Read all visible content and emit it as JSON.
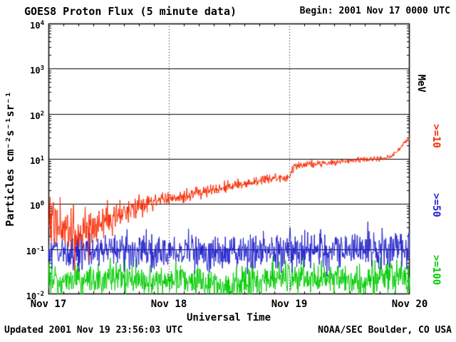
{
  "header": {
    "title": "GOES8 Proton Flux (5 minute data)",
    "begin_label": "Begin: 2001 Nov 17 0000 UTC"
  },
  "footer": {
    "updated": "Updated 2001 Nov 19 23:56:03 UTC",
    "credit": "NOAA/SEC Boulder, CO USA"
  },
  "axes": {
    "ylabel": "Particles cm⁻²s⁻¹sr⁻¹",
    "xlabel": "Universal Time",
    "right_unit": "MeV",
    "y_tick_exponents": [
      4,
      3,
      2,
      1,
      0,
      -1,
      -2
    ],
    "x_tick_labels": [
      "Nov 17",
      "Nov 18",
      "Nov 19",
      "Nov 20"
    ]
  },
  "colors": {
    "red_series": "#fa2800",
    "blue_series": "#2020cc",
    "green_series": "#00cc00",
    "axis": "#000000",
    "background": "#ffffff"
  },
  "chart_data": {
    "type": "line",
    "title": "GOES8 Proton Flux (5 minute data)",
    "xlabel": "Universal Time",
    "ylabel": "Particles cm^-2 s^-1 sr^-1",
    "x_unit": "hours since 2001 Nov 17 0000 UTC",
    "x_range_hours": [
      0,
      72
    ],
    "x_tick_hours": [
      0,
      24,
      48,
      72
    ],
    "x_gridlines_hours": [
      24,
      48
    ],
    "y_scale": "log10",
    "ylim": [
      0.01,
      10000
    ],
    "grid": "horizontal solid per decade, vertical dotted per day",
    "legend_position": "right edge, rotated",
    "sample_minutes": 5,
    "noise_seed": 20011117,
    "series": [
      {
        "name": ">=10",
        "unit": "MeV",
        "color": "#fa2800",
        "anchors_hours": [
          0,
          1,
          2,
          3,
          4,
          5,
          6,
          7,
          8,
          9,
          10,
          11,
          12,
          14,
          16,
          18,
          20,
          22,
          24,
          27,
          30,
          33,
          36,
          39,
          42,
          45,
          46,
          47,
          48,
          48.5,
          49,
          50,
          52,
          54,
          56,
          58,
          60,
          62,
          64,
          66,
          67,
          68,
          69,
          70,
          71,
          72
        ],
        "anchors_flux": [
          0.55,
          0.4,
          0.35,
          0.3,
          0.3,
          0.25,
          0.25,
          0.2,
          0.2,
          0.3,
          0.35,
          0.45,
          0.5,
          0.55,
          0.7,
          0.85,
          1.0,
          1.15,
          1.3,
          1.5,
          1.8,
          2.1,
          2.4,
          2.8,
          3.2,
          3.6,
          3.9,
          3.6,
          4.2,
          5.5,
          6.8,
          7.2,
          7.6,
          8.0,
          8.3,
          8.6,
          9.0,
          9.5,
          9.8,
          10.2,
          10.0,
          11,
          13,
          17,
          23,
          30
        ],
        "noise_anchors_hours": [
          0,
          6,
          10,
          14,
          20,
          24,
          36,
          48,
          60,
          72
        ],
        "noise_log10": [
          0.26,
          0.3,
          0.24,
          0.15,
          0.1,
          0.07,
          0.06,
          0.05,
          0.035,
          0.02
        ]
      },
      {
        "name": ">=50",
        "unit": "MeV",
        "color": "#2020cc",
        "anchors_hours": [
          0,
          6,
          12,
          18,
          24,
          30,
          36,
          42,
          48,
          54,
          60,
          66,
          72
        ],
        "anchors_flux": [
          0.09,
          0.085,
          0.09,
          0.09,
          0.095,
          0.09,
          0.085,
          0.09,
          0.095,
          0.1,
          0.1,
          0.105,
          0.11
        ],
        "noise_anchors_hours": [
          0,
          72
        ],
        "noise_log10": [
          0.2,
          0.2
        ]
      },
      {
        "name": ">=100",
        "unit": "MeV",
        "color": "#00cc00",
        "anchors_hours": [
          0,
          6,
          12,
          18,
          24,
          30,
          33,
          36,
          39,
          42,
          48,
          54,
          60,
          66,
          72
        ],
        "anchors_flux": [
          0.022,
          0.02,
          0.022,
          0.021,
          0.022,
          0.019,
          0.015,
          0.014,
          0.018,
          0.02,
          0.022,
          0.022,
          0.022,
          0.023,
          0.024
        ],
        "noise_anchors_hours": [
          0,
          72
        ],
        "noise_log10": [
          0.18,
          0.18
        ]
      }
    ]
  }
}
